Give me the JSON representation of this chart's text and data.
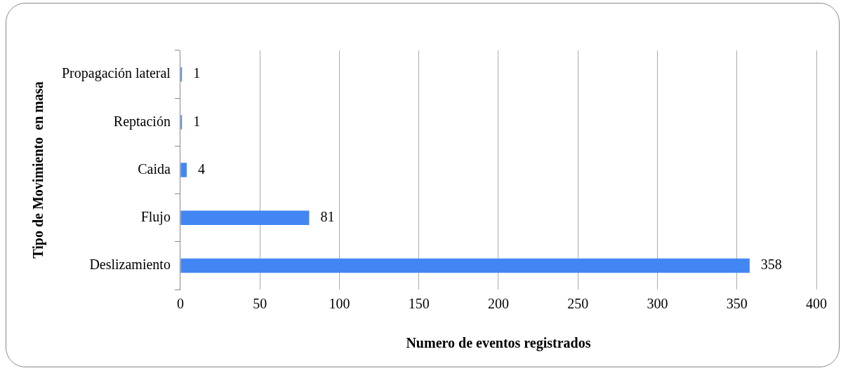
{
  "chart_data": {
    "type": "bar",
    "orientation": "horizontal",
    "xlabel": "Numero de eventos registrados",
    "ylabel": "Tipo de Movimiento  en masa",
    "categories": [
      "Propagación lateral",
      "Reptación",
      "Caida",
      "Flujo",
      "Deslizamiento"
    ],
    "values": [
      1,
      1,
      4,
      81,
      358
    ],
    "color": "#4286f4",
    "xlim": [
      0,
      400
    ],
    "xticks": [
      0,
      50,
      100,
      150,
      200,
      250,
      300,
      350,
      400
    ],
    "grid": "x",
    "data_labels": true
  }
}
